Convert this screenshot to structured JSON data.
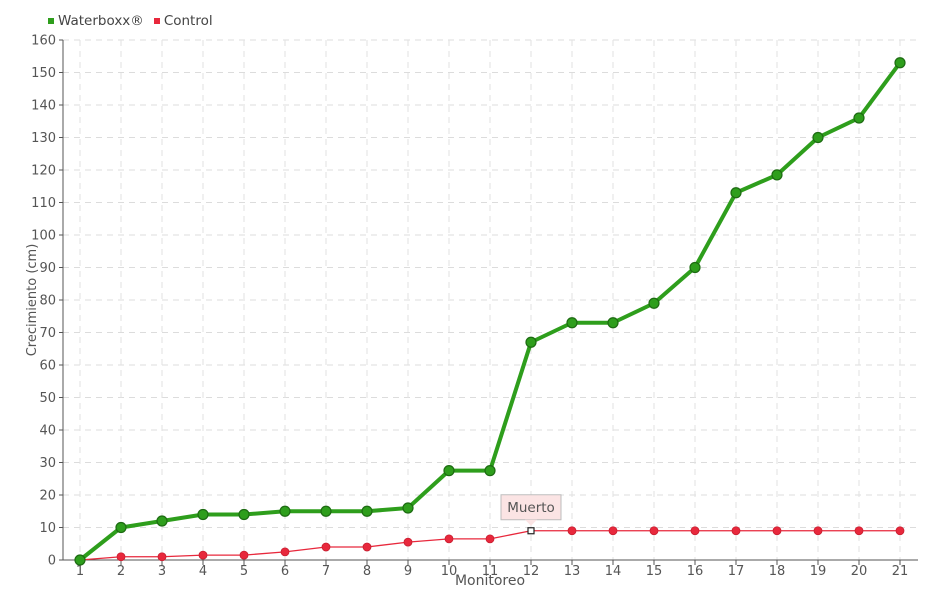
{
  "chart_data": {
    "type": "line",
    "xlabel": "Monitoreo",
    "ylabel": "Crecimiento (cm)",
    "ylim": [
      0,
      160
    ],
    "yticks": [
      0,
      10,
      20,
      30,
      40,
      50,
      60,
      70,
      80,
      90,
      100,
      110,
      120,
      130,
      140,
      150,
      160
    ],
    "categories": [
      "1",
      "2",
      "3",
      "4",
      "5",
      "6",
      "7",
      "8",
      "9",
      "10",
      "11",
      "12",
      "13",
      "14",
      "15",
      "16",
      "17",
      "18",
      "19",
      "20",
      "21"
    ],
    "grid": true,
    "legend_position": "top-left",
    "series": [
      {
        "name": "Waterboxx®",
        "color": "#2e9e1c",
        "values": [
          0,
          10,
          12,
          14,
          14,
          15,
          15,
          15,
          16,
          27.5,
          27.5,
          67,
          73,
          73,
          79,
          90,
          113,
          118.5,
          130,
          136,
          153
        ]
      },
      {
        "name": "Control",
        "color": "#e8283c",
        "values": [
          0,
          1,
          1,
          1.5,
          1.5,
          2.5,
          4,
          4,
          5.5,
          6.5,
          6.5,
          9,
          9,
          9,
          9,
          9,
          9,
          9,
          9,
          9,
          9
        ]
      }
    ],
    "annotation": {
      "text": "Muerto",
      "series": "Control",
      "x": "12",
      "y": 9
    }
  }
}
